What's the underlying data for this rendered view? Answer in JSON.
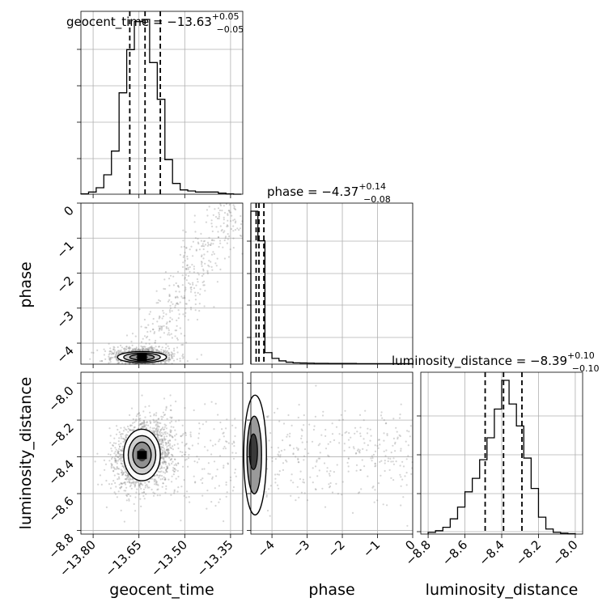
{
  "chart_data": [
    {
      "type": "histogram",
      "panel": "geocent_time-marginal",
      "title": "geocent_time = −13.63",
      "title_sup": "+0.05",
      "title_sub": "−0.05",
      "xlim": [
        -13.84,
        -13.31
      ],
      "bin_edges": [
        -13.84,
        -13.815,
        -13.79,
        -13.765,
        -13.74,
        -13.715,
        -13.69,
        -13.665,
        -13.64,
        -13.615,
        -13.59,
        -13.565,
        -13.54,
        -13.515,
        -13.49,
        -13.465,
        -13.44,
        -13.415,
        -13.39,
        -13.365,
        -13.34,
        -13.315
      ],
      "counts": [
        0.002,
        0.01,
        0.03,
        0.09,
        0.2,
        0.47,
        0.67,
        0.8,
        0.81,
        0.61,
        0.44,
        0.16,
        0.05,
        0.02,
        0.015,
        0.01,
        0.01,
        0.01,
        0.005,
        0.002,
        0.0
      ],
      "quantiles": [
        -13.68,
        -13.63,
        -13.58
      ],
      "grid": true
    },
    {
      "type": "scatter",
      "panel": "phase-vs-geocent_time",
      "xlim": [
        -13.84,
        -13.31
      ],
      "ylim": [
        -4.6,
        0
      ],
      "ylabel": "phase",
      "yticks": [
        0,
        -1,
        -2,
        -3,
        -4
      ],
      "yticklabels": [
        "0",
        "−1",
        "−2",
        "−3",
        "−4"
      ],
      "density_peak": [
        -13.63,
        -4.4
      ],
      "contours": "1,2,3-sigma filled levels around peak",
      "grid": true
    },
    {
      "type": "histogram",
      "panel": "phase-marginal",
      "title": "phase = −4.37",
      "title_sup": "+0.14",
      "title_sub": "−0.08",
      "xlim": [
        -4.6,
        0
      ],
      "bin_edges": [
        -4.6,
        -4.4,
        -4.2,
        -4.0,
        -3.8,
        -3.6,
        -3.4,
        -3.2,
        -3.0,
        -2.8,
        -2.6,
        -2.4,
        -2.2,
        -2.0,
        -1.8,
        -1.6,
        -1.4,
        -1.2,
        -1.0,
        -0.8,
        -0.6,
        -0.4,
        -0.2,
        0.0
      ],
      "counts": [
        0.93,
        0.75,
        0.07,
        0.035,
        0.02,
        0.012,
        0.008,
        0.007,
        0.006,
        0.005,
        0.005,
        0.004,
        0.004,
        0.004,
        0.004,
        0.003,
        0.003,
        0.003,
        0.003,
        0.003,
        0.003,
        0.003,
        0.003
      ],
      "quantiles": [
        -4.45,
        -4.37,
        -4.23
      ],
      "grid": true
    },
    {
      "type": "scatter",
      "panel": "luminosity_distance-vs-geocent_time",
      "xlim": [
        -13.84,
        -13.31
      ],
      "ylim": [
        -8.82,
        -7.94
      ],
      "xlabel": "geocent_time",
      "ylabel": "luminosity_distance",
      "xticks": [
        -13.8,
        -13.65,
        -13.5,
        -13.35
      ],
      "xticklabels": [
        "−13.80",
        "−13.65",
        "−13.50",
        "−13.35"
      ],
      "yticks": [
        -8.0,
        -8.2,
        -8.4,
        -8.6,
        -8.8
      ],
      "yticklabels": [
        "−8.0",
        "−8.2",
        "−8.4",
        "−8.6",
        "−8.8"
      ],
      "density_peak": [
        -13.64,
        -8.39
      ],
      "grid": true
    },
    {
      "type": "scatter",
      "panel": "luminosity_distance-vs-phase",
      "xlim": [
        -4.6,
        0
      ],
      "ylim": [
        -8.82,
        -7.94
      ],
      "xlabel": "phase",
      "xticks": [
        -4,
        -3,
        -2,
        -1,
        0
      ],
      "xticklabels": [
        "−4",
        "−3",
        "−2",
        "−1",
        "0"
      ],
      "density_peak": [
        -4.45,
        -8.39
      ],
      "grid": true
    },
    {
      "type": "histogram",
      "panel": "luminosity_distance-marginal",
      "title": "luminosity_distance = −8.39",
      "title_sup": "+0.10",
      "title_sub": "−0.10",
      "xlim": [
        -8.84,
        -7.96
      ],
      "xlabel": "luminosity_distance",
      "xticks": [
        -8.8,
        -8.6,
        -8.4,
        -8.2,
        -8.0
      ],
      "xticklabels": [
        "−8.8",
        "−8.6",
        "−8.4",
        "−8.2",
        "−8.0"
      ],
      "bin_edges": [
        -8.8,
        -8.76,
        -8.72,
        -8.68,
        -8.64,
        -8.6,
        -8.56,
        -8.52,
        -8.48,
        -8.44,
        -8.4,
        -8.36,
        -8.32,
        -8.28,
        -8.24,
        -8.2,
        -8.16,
        -8.12,
        -8.08,
        -8.04,
        -8.0
      ],
      "counts": [
        0.01,
        0.02,
        0.04,
        0.09,
        0.16,
        0.25,
        0.33,
        0.44,
        0.57,
        0.74,
        0.91,
        0.77,
        0.64,
        0.45,
        0.27,
        0.1,
        0.03,
        0.01,
        0.005,
        0.002
      ],
      "quantiles": [
        -8.49,
        -8.39,
        -8.29
      ],
      "grid": true
    }
  ]
}
